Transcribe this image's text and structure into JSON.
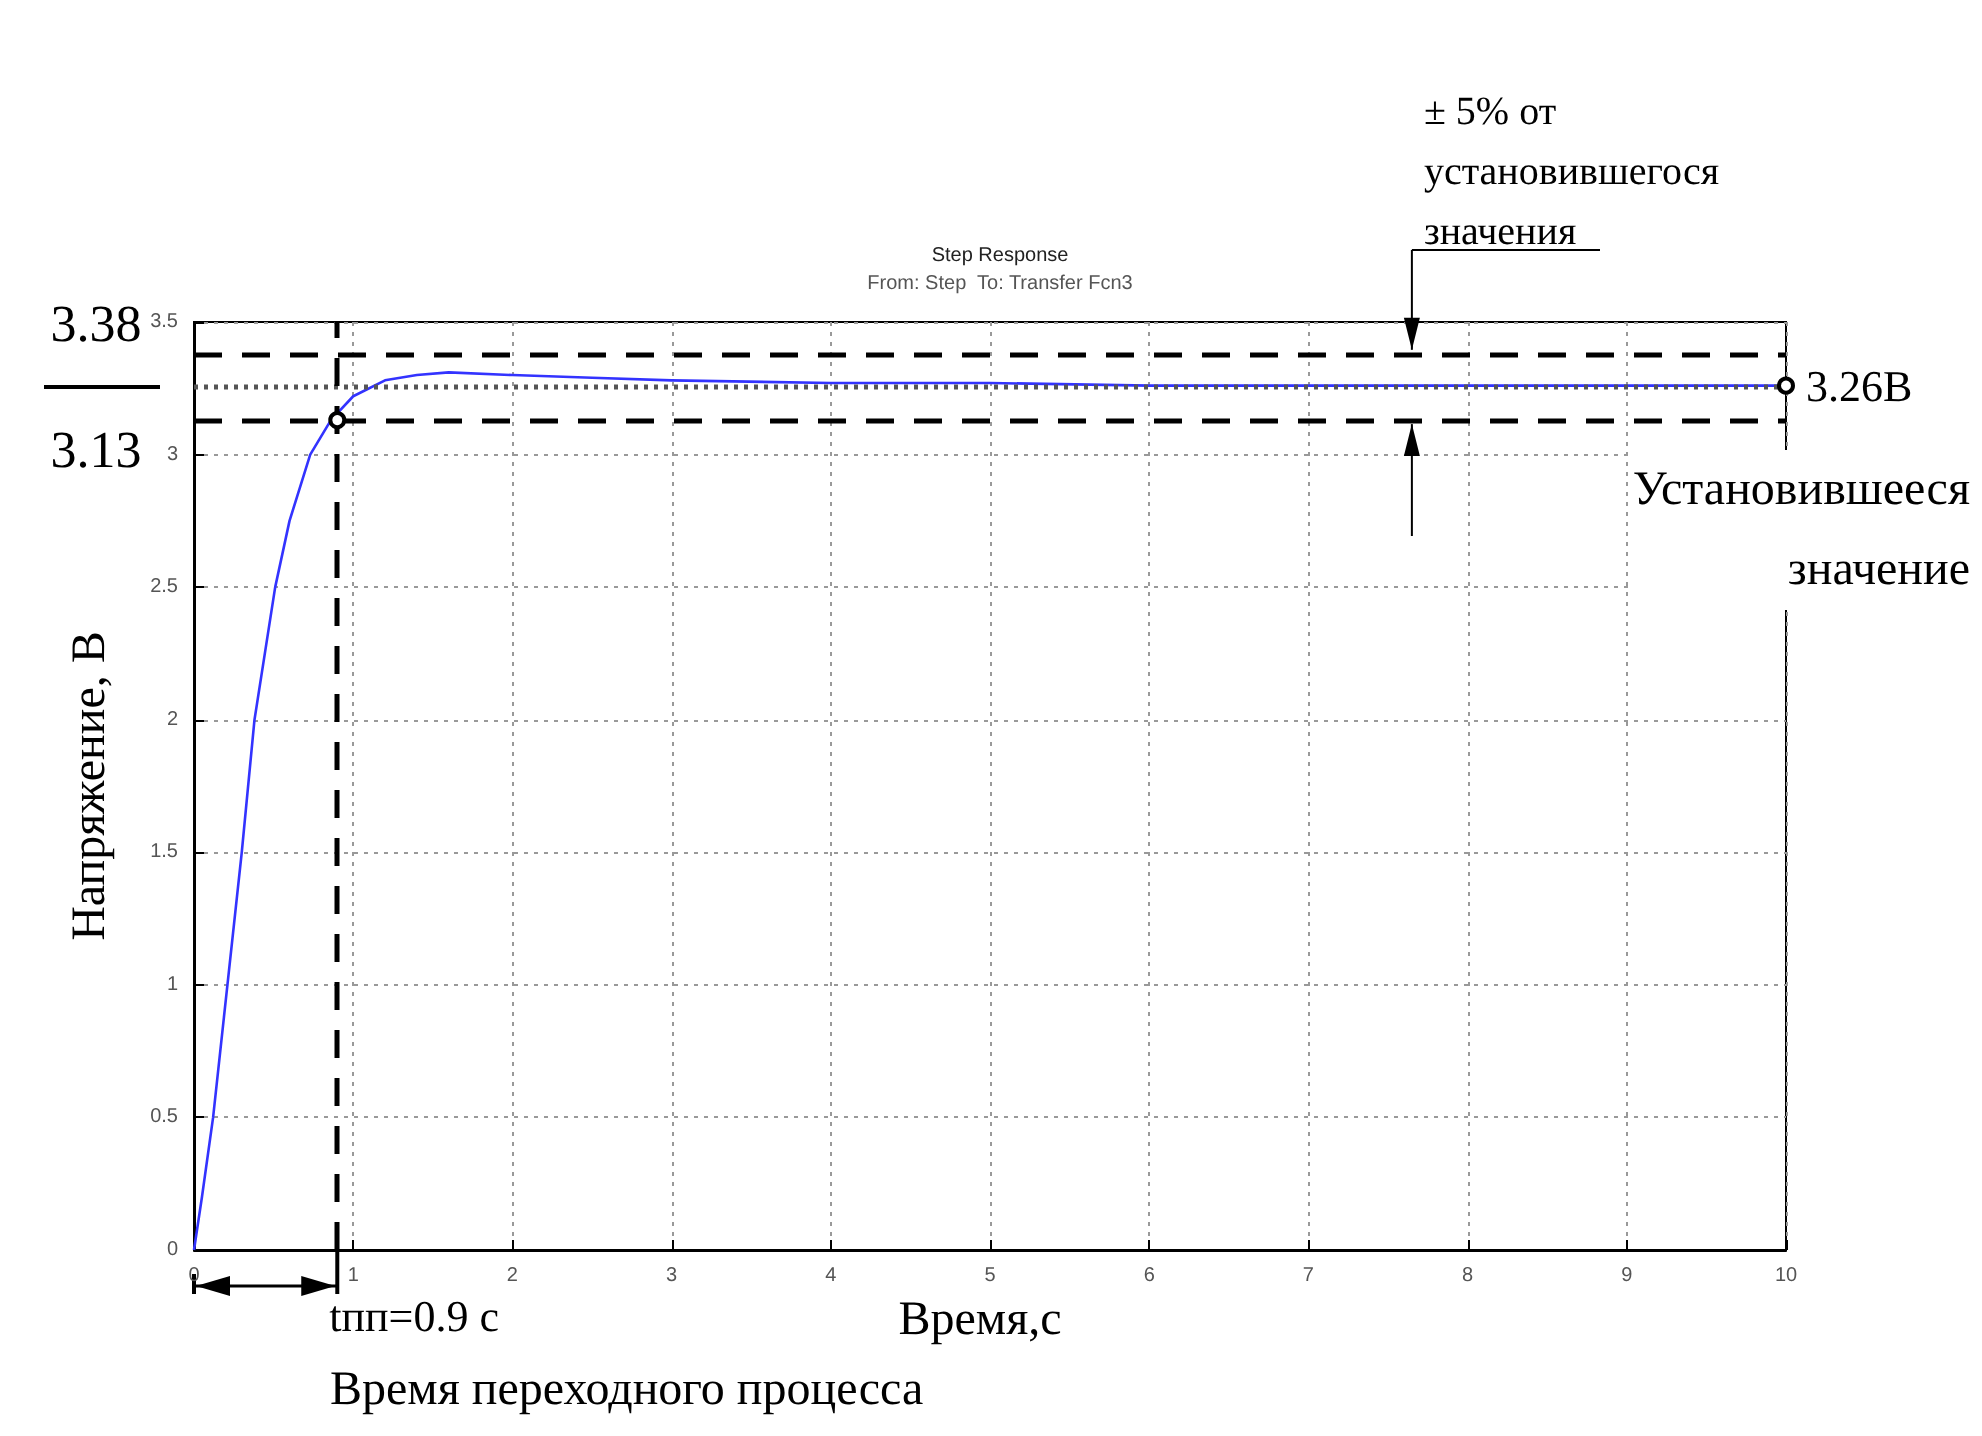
{
  "chart_data": {
    "type": "line",
    "title": "Step Response",
    "subtitle": "From: Step  To: Transfer Fcn3",
    "xlabel": "Время,с",
    "ylabel": "Напряжение, В",
    "series": [
      {
        "color": "#3333ff",
        "x": [
          0,
          0.05,
          0.12,
          0.21,
          0.3,
          0.38,
          0.51,
          0.6,
          0.73,
          0.86,
          1.0,
          1.2,
          1.4,
          1.6,
          2,
          2.5,
          3,
          4,
          5,
          6,
          7,
          8,
          9,
          10
        ],
        "values": [
          0,
          0.2,
          0.5,
          1,
          1.5,
          2,
          2.5,
          2.75,
          3,
          3.13,
          3.22,
          3.28,
          3.3,
          3.31,
          3.3,
          3.29,
          3.28,
          3.27,
          3.27,
          3.26,
          3.26,
          3.26,
          3.26,
          3.26
        ]
      }
    ],
    "xlim": [
      0,
      10
    ],
    "xticks": [
      0,
      1,
      2,
      3,
      4,
      5,
      6,
      7,
      8,
      9,
      10
    ],
    "ylim": [
      0,
      3.5
    ],
    "yticks": [
      0,
      0.5,
      1,
      1.5,
      2,
      2.5,
      3,
      3.5
    ],
    "ref_lines": [
      {
        "axis": "y",
        "value": 3.38,
        "label": "3.38",
        "color": "#000000",
        "line_style": "dashed"
      },
      {
        "axis": "y",
        "value": 3.13,
        "label": "3.13",
        "color": "#000000",
        "line_style": "dashed"
      },
      {
        "axis": "y",
        "value": 3.26,
        "label": null,
        "color": "#555555",
        "line_style": "dotted"
      },
      {
        "axis": "x",
        "value": 0.9,
        "label": null,
        "color": "#000000",
        "line_style": "dashed"
      }
    ],
    "annotations": [
      {
        "text": "± 5% от\nустановившегося\nзначения",
        "x": 7.65,
        "y": 3.38
      },
      {
        "text": "3.26В",
        "x": 10,
        "y": 3.26
      },
      "Установившееся\nзначение",
      {
        "text": "tпп=0.9 с",
        "x": 0.9,
        "y": 0
      },
      "Время переходного процесса"
    ],
    "grid": true,
    "marker": "none",
    "line_style": "solid"
  }
}
